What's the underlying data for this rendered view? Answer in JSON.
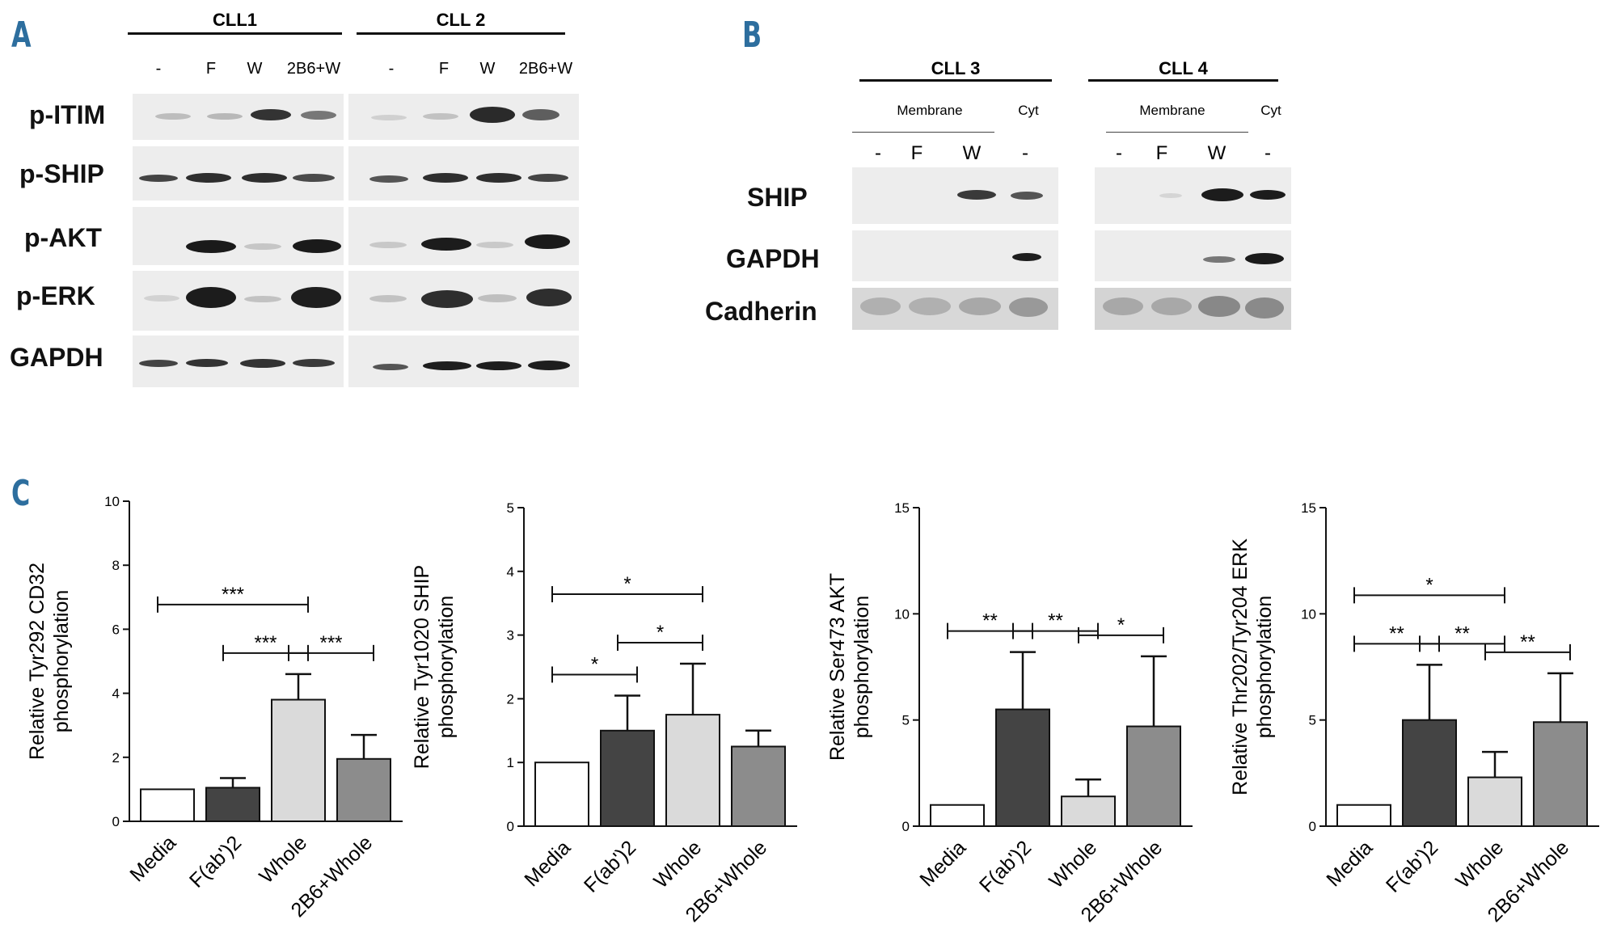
{
  "panels": {
    "a": "A",
    "b": "B",
    "c": "C"
  },
  "blot_a": {
    "groups": [
      "CLL1",
      "CLL 2"
    ],
    "lanes": [
      "-",
      "F",
      "W",
      "2B6+W"
    ],
    "rows": [
      "p-ITIM",
      "p-SHIP",
      "p-AKT",
      "p-ERK",
      "GAPDH"
    ]
  },
  "blot_b": {
    "groups": [
      "CLL 3",
      "CLL 4"
    ],
    "fractions": [
      "Membrane",
      "Cyt"
    ],
    "lanes": [
      "-",
      "F",
      "W",
      "-"
    ],
    "rows": [
      "SHIP",
      "GAPDH",
      "Cadherin"
    ]
  },
  "colors": {
    "media": "#ffffff",
    "fab": "#444444",
    "whole": "#dadada",
    "b6whole": "#8c8c8c",
    "panel_letter": "#2d6e9e"
  },
  "chart_data": [
    {
      "type": "bar",
      "ylabel": "Relative Tyr292 CD32 phosphorylation",
      "categories": [
        "Media",
        "F(ab')2",
        "Whole",
        "2B6+Whole"
      ],
      "values": [
        1.0,
        1.05,
        3.8,
        1.95
      ],
      "errors": [
        0,
        0.3,
        0.8,
        0.75
      ],
      "ylim": [
        0,
        10
      ],
      "yticks": [
        0,
        2,
        4,
        6,
        8,
        10
      ],
      "significance": [
        {
          "from": 0,
          "to": 2,
          "label": "***"
        },
        {
          "from": 1,
          "to": 2,
          "label": "***"
        },
        {
          "from": 2,
          "to": 3,
          "label": "***"
        }
      ]
    },
    {
      "type": "bar",
      "ylabel": "Relative Tyr1020 SHIP phosphorylation",
      "categories": [
        "Media",
        "F(ab')2",
        "Whole",
        "2B6+Whole"
      ],
      "values": [
        1.0,
        1.5,
        1.75,
        1.25
      ],
      "errors": [
        0,
        0.55,
        0.8,
        0.25
      ],
      "ylim": [
        0,
        5
      ],
      "yticks": [
        0,
        1,
        2,
        3,
        4,
        5
      ],
      "significance": [
        {
          "from": 0,
          "to": 2,
          "label": "*"
        },
        {
          "from": 1,
          "to": 2,
          "label": "*"
        },
        {
          "from": 0,
          "to": 1,
          "label": "*"
        }
      ]
    },
    {
      "type": "bar",
      "ylabel": "Relative Ser473 AKT phosphorylation",
      "categories": [
        "Media",
        "F(ab')2",
        "Whole",
        "2B6+Whole"
      ],
      "values": [
        1.0,
        5.5,
        1.4,
        4.7
      ],
      "errors": [
        0,
        2.7,
        0.8,
        3.3
      ],
      "ylim": [
        0,
        15
      ],
      "yticks": [
        0,
        5,
        10,
        15
      ],
      "significance": [
        {
          "from": 0,
          "to": 1,
          "label": "**"
        },
        {
          "from": 1,
          "to": 2,
          "label": "**"
        },
        {
          "from": 2,
          "to": 3,
          "label": "*"
        }
      ]
    },
    {
      "type": "bar",
      "ylabel": "Relative Thr202/Tyr204 ERK phosphorylation",
      "categories": [
        "Media",
        "F(ab')2",
        "Whole",
        "2B6+Whole"
      ],
      "values": [
        1.0,
        5.0,
        2.3,
        4.9
      ],
      "errors": [
        0,
        2.6,
        1.2,
        2.3
      ],
      "ylim": [
        0,
        15
      ],
      "yticks": [
        0,
        5,
        10,
        15
      ],
      "significance": [
        {
          "from": 0,
          "to": 2,
          "label": "*"
        },
        {
          "from": 0,
          "to": 1,
          "label": "**"
        },
        {
          "from": 1,
          "to": 2,
          "label": "**"
        },
        {
          "from": 2,
          "to": 3,
          "label": "**"
        }
      ]
    }
  ]
}
